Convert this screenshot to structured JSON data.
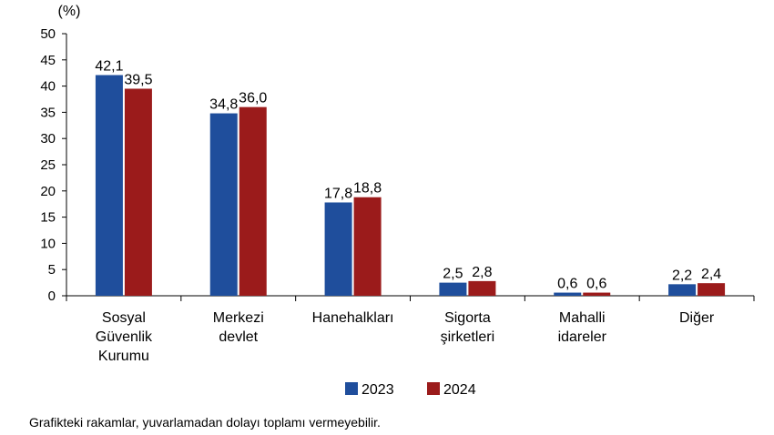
{
  "chart_data": {
    "type": "bar",
    "unit_label": "(%)",
    "categories": [
      [
        "Sosyal",
        "Güvenlik",
        "Kurumu"
      ],
      [
        "Merkezi",
        "devlet"
      ],
      [
        "Hanehalkları"
      ],
      [
        "Sigorta",
        "şirketleri"
      ],
      [
        "Mahalli",
        "idareler"
      ],
      [
        "Diğer"
      ]
    ],
    "series": [
      {
        "name": "2023",
        "color": "#1f4e9c",
        "values": [
          42.1,
          34.8,
          17.8,
          2.5,
          0.6,
          2.2
        ],
        "labels": [
          "42,1",
          "34,8",
          "17,8",
          "2,5",
          "0,6",
          "2,2"
        ]
      },
      {
        "name": "2024",
        "color": "#9b1b1b",
        "values": [
          39.5,
          36.0,
          18.8,
          2.8,
          0.6,
          2.4
        ],
        "labels": [
          "39,5",
          "36,0",
          "18,8",
          "2,8",
          "0,6",
          "2,4"
        ]
      }
    ],
    "ylim": [
      0,
      50
    ],
    "yticks": [
      0,
      5,
      10,
      15,
      20,
      25,
      30,
      35,
      40,
      45,
      50
    ],
    "grid": false,
    "legend_position": "bottom"
  },
  "footnote": "Grafikteki rakamlar, yuvarlamadan dolayı toplamı vermeyebilir."
}
